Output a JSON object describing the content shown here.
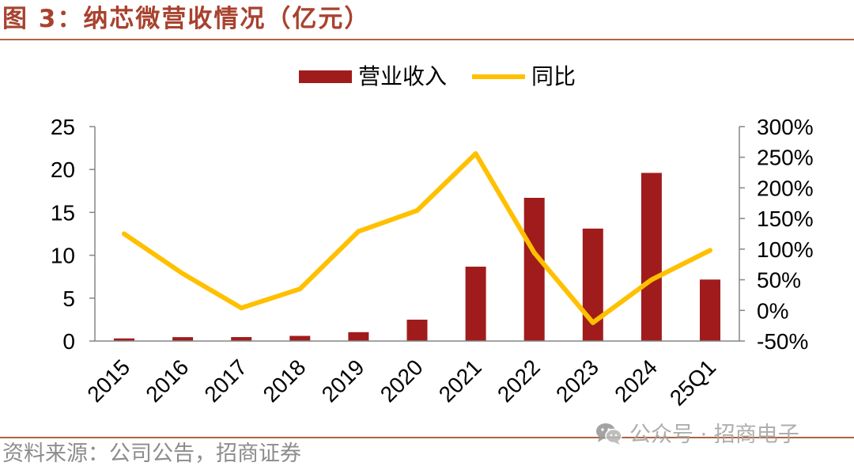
{
  "colors": {
    "title": "#A8422E",
    "rule": "#B0633F",
    "bar": "#A01C1C",
    "line": "#FFC000",
    "axis": "#868686",
    "text": "#000000",
    "source": "#8C8C8C",
    "watermark": "#A6A6A6"
  },
  "source": "资料来源：公司公告，招商证券",
  "watermark": {
    "text": "公众号 · 招商电子",
    "icon": "wechat-icon"
  },
  "chart_data": {
    "type": "bar",
    "title": "图 3：纳芯微营收情况（亿元）",
    "categories": [
      "2015",
      "2016",
      "2017",
      "2018",
      "2019",
      "2020",
      "2021",
      "2022",
      "2023",
      "2024",
      "25Q1"
    ],
    "series": [
      {
        "name": "营业收入",
        "type": "bar",
        "axis": "left",
        "values": [
          0.3,
          0.45,
          0.46,
          0.6,
          1.03,
          2.49,
          8.67,
          16.7,
          13.11,
          19.6,
          7.17
        ]
      },
      {
        "name": "同比",
        "type": "line",
        "axis": "right",
        "unit": "%",
        "values": [
          125,
          60,
          4,
          35,
          129,
          163,
          256,
          94,
          -20,
          50,
          98
        ]
      }
    ],
    "y_left": {
      "lim": [
        0,
        25
      ],
      "ticks": [
        0,
        5,
        10,
        15,
        20,
        25
      ],
      "tick_labels": [
        "0",
        "5",
        "10",
        "15",
        "20",
        "25"
      ]
    },
    "y_right": {
      "lim": [
        -50,
        300
      ],
      "ticks": [
        -50,
        0,
        50,
        100,
        150,
        200,
        250,
        300
      ],
      "tick_labels": [
        "-50%",
        "0%",
        "50%",
        "100%",
        "150%",
        "200%",
        "250%",
        "300%"
      ]
    },
    "legend": "top-center",
    "grid": false
  }
}
